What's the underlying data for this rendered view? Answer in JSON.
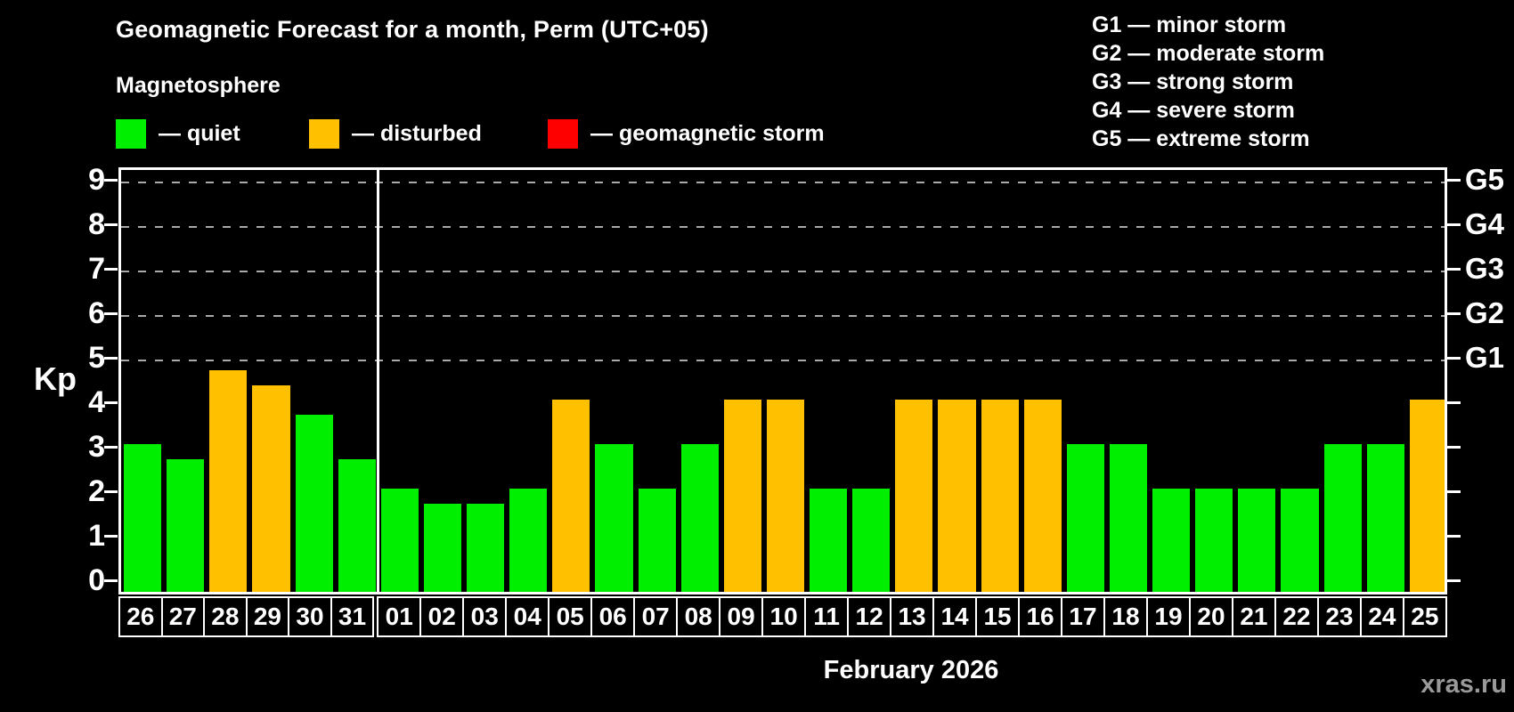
{
  "title": "Geomagnetic Forecast for a month, Perm (UTC+05)",
  "subtitle": "Magnetosphere",
  "colors": {
    "quiet": "#00EE00",
    "disturbed": "#FFC000",
    "storm": "#FF0000",
    "background": "#000000",
    "axis": "#FFFFFF",
    "gridline": "#AAAAAA",
    "watermark_gray": "#9A9A9A"
  },
  "legend": {
    "items": [
      {
        "key": "quiet",
        "label": "— quiet"
      },
      {
        "key": "disturbed",
        "label": "— disturbed"
      },
      {
        "key": "storm",
        "label": "— geomagnetic storm"
      }
    ]
  },
  "g_scale_legend": [
    "G1 — minor storm",
    "G2 — moderate storm",
    "G3 — strong storm",
    "G4 — severe storm",
    "G5 — extreme storm"
  ],
  "watermark": "xras.ru",
  "chart_data": {
    "type": "bar",
    "title": "Geomagnetic Forecast for a month, Perm (UTC+05)",
    "ylabel": "Kp",
    "xlabel": "February 2026",
    "ylim": [
      0,
      9
    ],
    "y_ticks": [
      0,
      1,
      2,
      3,
      4,
      5,
      6,
      7,
      8,
      9
    ],
    "gridlines_at": [
      5,
      6,
      7,
      8,
      9
    ],
    "grid": "dashed horizontal at storm levels only",
    "legend_position": "top",
    "right_axis_labels": [
      {
        "kp": 5,
        "label": "G1"
      },
      {
        "kp": 6,
        "label": "G2"
      },
      {
        "kp": 7,
        "label": "G3"
      },
      {
        "kp": 8,
        "label": "G4"
      },
      {
        "kp": 9,
        "label": "G5"
      }
    ],
    "month_boundary_index": 6,
    "categories": [
      "26",
      "27",
      "28",
      "29",
      "30",
      "31",
      "01",
      "02",
      "03",
      "04",
      "05",
      "06",
      "07",
      "08",
      "09",
      "10",
      "11",
      "12",
      "13",
      "14",
      "15",
      "16",
      "17",
      "18",
      "19",
      "20",
      "21",
      "22",
      "23",
      "24",
      "25"
    ],
    "values": [
      3.0,
      2.67,
      4.67,
      4.33,
      3.67,
      2.67,
      2.0,
      1.67,
      1.67,
      2.0,
      4.0,
      3.0,
      2.0,
      3.0,
      4.0,
      4.0,
      2.0,
      2.0,
      4.0,
      4.0,
      4.0,
      4.0,
      3.0,
      3.0,
      2.0,
      2.0,
      2.0,
      2.0,
      3.0,
      3.0,
      4.0
    ],
    "statuses": [
      "quiet",
      "quiet",
      "disturbed",
      "disturbed",
      "quiet",
      "quiet",
      "quiet",
      "quiet",
      "quiet",
      "quiet",
      "disturbed",
      "quiet",
      "quiet",
      "quiet",
      "disturbed",
      "disturbed",
      "quiet",
      "quiet",
      "disturbed",
      "disturbed",
      "disturbed",
      "disturbed",
      "quiet",
      "quiet",
      "quiet",
      "quiet",
      "quiet",
      "quiet",
      "quiet",
      "quiet",
      "disturbed"
    ]
  }
}
